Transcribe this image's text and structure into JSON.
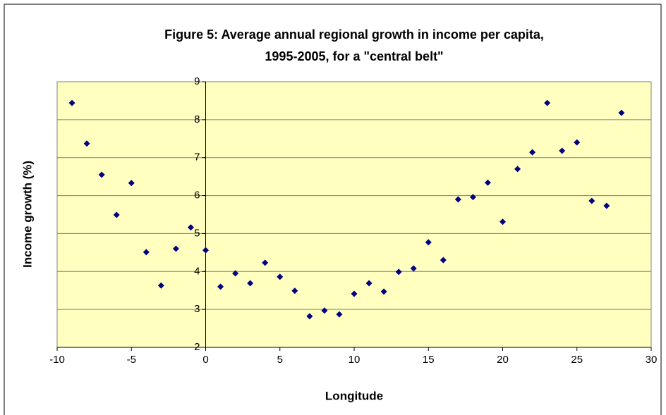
{
  "chart_data": {
    "type": "scatter",
    "title": [
      "Figure 5: Average annual regional growth in income per capita,",
      "1995-2005, for a \"central belt\""
    ],
    "x_label": "Longitude",
    "y_label": "Income growth (%)",
    "x": [
      -9,
      -8,
      -7,
      -6,
      -5,
      -4,
      -3,
      -2,
      -1,
      0,
      1,
      2,
      3,
      4,
      5,
      6,
      7,
      8,
      9,
      10,
      11,
      12,
      13,
      14,
      15,
      16,
      17,
      18,
      19,
      20,
      21,
      22,
      23,
      24,
      25,
      26,
      27,
      28
    ],
    "values": [
      8.44,
      7.37,
      6.55,
      5.49,
      6.33,
      4.51,
      3.63,
      4.6,
      5.16,
      4.56,
      3.6,
      3.95,
      3.69,
      4.23,
      3.86,
      3.49,
      2.82,
      2.97,
      2.87,
      3.41,
      3.69,
      3.47,
      3.99,
      4.08,
      4.77,
      4.3,
      5.9,
      5.96,
      6.34,
      5.31,
      6.7,
      7.14,
      8.44,
      7.18,
      7.4,
      5.86,
      5.73,
      8.18
    ],
    "color": "#000080",
    "plot_background": "#ffffc0",
    "xlim": [
      -10,
      30
    ],
    "xticks": [
      -10,
      -5,
      0,
      5,
      10,
      15,
      20,
      25,
      30
    ],
    "ylim": [
      2,
      9
    ],
    "yticks": [
      2,
      3,
      4,
      5,
      6,
      7,
      8,
      9
    ],
    "grid": true
  }
}
